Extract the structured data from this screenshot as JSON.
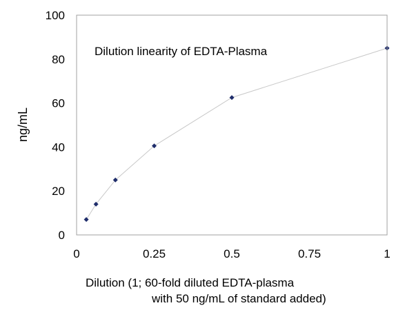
{
  "chart_data": {
    "type": "scatter",
    "title": "Dilution linearity of EDTA-Plasma",
    "xlabel_lines": [
      "Dilution (1; 60-fold diluted EDTA-plasma",
      "with 50 ng/mL of standard added)"
    ],
    "ylabel": "ng/mL",
    "xlim": [
      0,
      1
    ],
    "ylim": [
      0,
      100
    ],
    "x_ticks": [
      0,
      0.25,
      0.5,
      0.75,
      1
    ],
    "x_tick_labels": [
      "0",
      "0.25",
      "0.5",
      "0.75",
      "1"
    ],
    "y_ticks": [
      0,
      20,
      40,
      60,
      80,
      100
    ],
    "y_tick_labels": [
      "0",
      "20",
      "40",
      "60",
      "80",
      "100"
    ],
    "grid": false,
    "connected_line": true,
    "series": [
      {
        "x": [
          0.03125,
          0.0625,
          0.125,
          0.25,
          0.5,
          1
        ],
        "y": [
          7,
          14,
          25,
          40.5,
          62.5,
          85
        ],
        "marker_color": "#1f2d6b",
        "line_color": "#c8c8c8"
      }
    ]
  }
}
